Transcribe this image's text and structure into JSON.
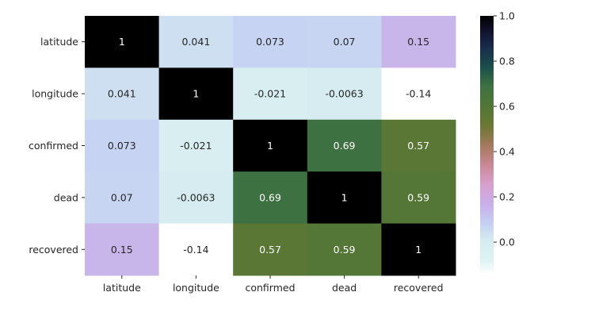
{
  "chart_data": {
    "type": "heatmap",
    "title": "",
    "xlabel": "",
    "ylabel": "",
    "x_labels": [
      "latitude",
      "longitude",
      "confirmed",
      "dead",
      "recovered"
    ],
    "y_labels": [
      "latitude",
      "longitude",
      "confirmed",
      "dead",
      "recovered"
    ],
    "values": [
      [
        1,
        0.041,
        0.073,
        0.07,
        0.15
      ],
      [
        0.041,
        1,
        -0.021,
        -0.0063,
        -0.14
      ],
      [
        0.073,
        -0.021,
        1,
        0.69,
        0.57
      ],
      [
        0.07,
        -0.0063,
        0.69,
        1,
        0.59
      ],
      [
        0.15,
        -0.14,
        0.57,
        0.59,
        1
      ]
    ],
    "annotations": [
      [
        "1",
        "0.041",
        "0.073",
        "0.07",
        "0.15"
      ],
      [
        "0.041",
        "1",
        "-0.021",
        "-0.0063",
        "-0.14"
      ],
      [
        "0.073",
        "-0.021",
        "1",
        "0.69",
        "0.57"
      ],
      [
        "0.07",
        "-0.0063",
        "0.69",
        "1",
        "0.59"
      ],
      [
        "0.15",
        "-0.14",
        "0.57",
        "0.59",
        "1"
      ]
    ],
    "colormap": "cubehelix_r",
    "vmin": -0.14,
    "vmax": 1,
    "colorbar": {
      "ticks": [
        0.0,
        0.2,
        0.4,
        0.6,
        0.8,
        1.0
      ],
      "tick_labels": [
        "0.0",
        "0.2",
        "0.4",
        "0.6",
        "0.8",
        "1.0"
      ],
      "position": "right"
    },
    "grid": false
  }
}
